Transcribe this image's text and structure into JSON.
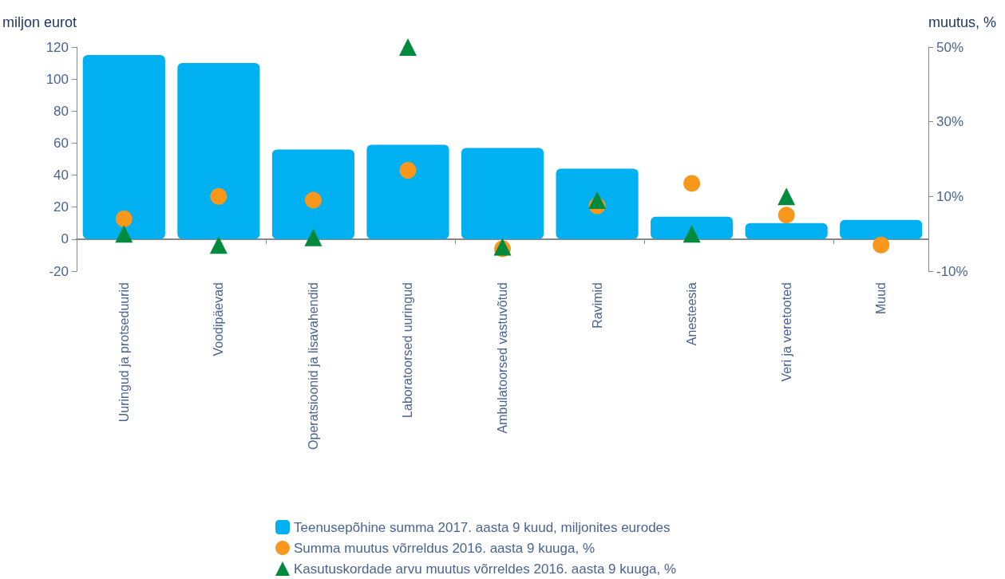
{
  "chart_data": {
    "type": "bar",
    "ylabel": "miljon eurot",
    "y2label": "muutus, %",
    "categories": [
      "Uuringud ja protseduurid",
      "Voodipäevad",
      "Operatsioonid ja lisavahendid",
      "Laboratoorsed uuringud",
      "Ambulatoorsed vastuvõtud",
      "Ravimid",
      "Anesteesia",
      "Veri ja veretooted",
      "Muud"
    ],
    "series": [
      {
        "name": "Teenusepõhine summa 2017. aasta 9 kuud, miljonites eurodes",
        "color": "#00b0f0",
        "values": [
          115,
          110,
          56,
          59,
          57,
          44,
          14,
          10,
          12
        ]
      },
      {
        "name": "Summa muutus võrreldus 2016. aasta 9 kuuga, %",
        "type": "scatter",
        "marker": "circle",
        "axis": "y2",
        "color": "#f7981d",
        "values": [
          4,
          10,
          9,
          17,
          -4,
          7.5,
          13.5,
          5,
          -3
        ]
      },
      {
        "name": "Kasutuskordade arvu muutus võrreldes 2016. aasta 9 kuuga, %",
        "type": "scatter",
        "marker": "triangle",
        "axis": "y2",
        "color": "#008a3e",
        "values": [
          0,
          -3,
          -1,
          50,
          -3.5,
          9,
          0,
          10,
          null
        ]
      }
    ],
    "ylim": [
      -20,
      120
    ],
    "yticks": [
      -20,
      0,
      20,
      40,
      60,
      80,
      100,
      120
    ],
    "y2lim": [
      -10,
      50
    ],
    "y2ticks": [
      {
        "value": -10,
        "label": "-10%"
      },
      {
        "value": 10,
        "label": "10%"
      },
      {
        "value": 30,
        "label": "30%"
      },
      {
        "value": 50,
        "label": "50%"
      }
    ],
    "legend": "bottom"
  }
}
